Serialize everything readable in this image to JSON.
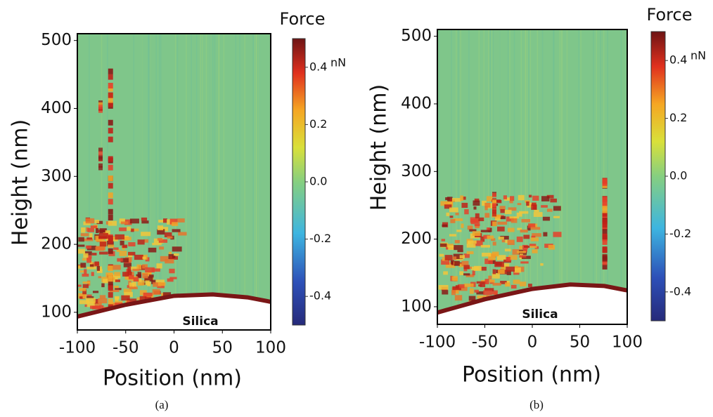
{
  "chart_data": [
    {
      "type": "heatmap",
      "caption": "(a)",
      "xlabel": "Position (nm)",
      "ylabel": "Height (nm)",
      "annotation": "Silica",
      "xlim": [
        -100,
        100
      ],
      "xticks": [
        -100,
        -50,
        0,
        50,
        100
      ],
      "ylim": [
        74,
        510
      ],
      "yticks": [
        100,
        200,
        300,
        400,
        500
      ],
      "colorbar": {
        "title": "Force",
        "unit": "nN",
        "lim": [
          -0.5,
          0.5
        ],
        "ticks": [
          0.4,
          0.2,
          {
            "value": 0,
            "label": "0.0"
          },
          -0.2,
          -0.4
        ]
      }
    },
    {
      "type": "heatmap",
      "caption": "(b)",
      "xlabel": "Position (nm)",
      "ylabel": "Height (nm)",
      "annotation": "Silica",
      "xlim": [
        -100,
        100
      ],
      "xticks": [
        -100,
        -50,
        0,
        50,
        100
      ],
      "ylim": [
        74,
        510
      ],
      "yticks": [
        100,
        200,
        300,
        400,
        500
      ],
      "colorbar": {
        "title": "Force",
        "unit": "nN",
        "lim": [
          -0.5,
          0.5
        ],
        "ticks": [
          0.4,
          0.2,
          {
            "value": 0,
            "label": "0.0"
          },
          -0.2,
          -0.4
        ]
      }
    }
  ]
}
